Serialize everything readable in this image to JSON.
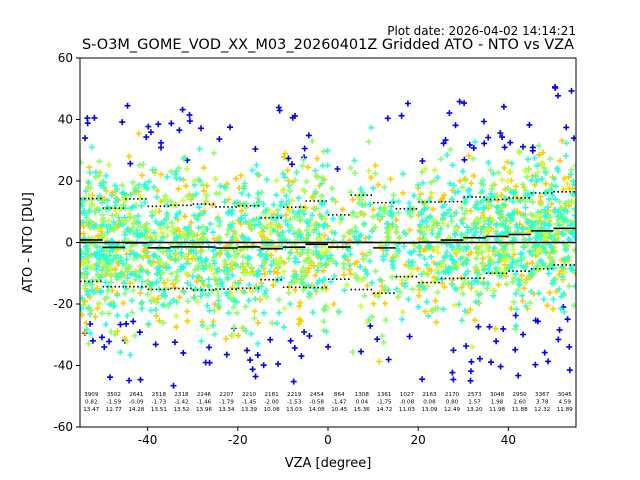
{
  "chart_data": {
    "type": "scatter",
    "plot_date": "Plot date: 2026-04-02 14:14:21",
    "title": "S-O3M_GOME_VOD_XX_M03_20260401Z Gridded ATO - NTO vs VZA",
    "xlabel": "VZA [degree]",
    "ylabel": "ATO - NTO [DU]",
    "xlim": [
      -55,
      55
    ],
    "ylim": [
      -60,
      60
    ],
    "xticks": [
      "-40",
      "-20",
      "0",
      "20",
      "40"
    ],
    "xtick_values": [
      -40,
      -20,
      0,
      20,
      40
    ],
    "yticks": [
      "60",
      "40",
      "20",
      "0",
      "-20",
      "-40",
      "-60"
    ],
    "ytick_values": [
      60,
      40,
      20,
      0,
      -20,
      -40,
      -60
    ],
    "marker": "plus",
    "marker_colors": [
      "#0000ee",
      "#ffcc00",
      "#88ff66",
      "#33ffcc",
      "#22ffee",
      "#ccff33"
    ],
    "bin_edges": [
      -55,
      -50,
      -45,
      -40,
      -35,
      -30,
      -25,
      -20,
      -15,
      -10,
      -5,
      0,
      5,
      10,
      15,
      20,
      25,
      30,
      35,
      40,
      45,
      50,
      55
    ],
    "bins": [
      {
        "x": -52.5,
        "count": "3909",
        "mean": "0.82",
        "std": "13.47"
      },
      {
        "x": -47.5,
        "count": "3502",
        "mean": "-1.59",
        "std": "12.77"
      },
      {
        "x": -42.5,
        "count": "2641",
        "mean": "-0.09",
        "std": "14.28"
      },
      {
        "x": -37.5,
        "count": "2518",
        "mean": "-1.73",
        "std": "13.51"
      },
      {
        "x": -32.5,
        "count": "2318",
        "mean": "-1.42",
        "std": "13.52"
      },
      {
        "x": -27.5,
        "count": "2246",
        "mean": "-1.46",
        "std": "13.96"
      },
      {
        "x": -22.5,
        "count": "2207",
        "mean": "-1.79",
        "std": "13.34"
      },
      {
        "x": -17.5,
        "count": "2210",
        "mean": "-1.45",
        "std": "13.39"
      },
      {
        "x": -12.5,
        "count": "2181",
        "mean": "-2.00",
        "std": "10.08"
      },
      {
        "x": -7.5,
        "count": "2219",
        "mean": "-1.53",
        "std": "13.03"
      },
      {
        "x": -2.5,
        "count": "2454",
        "mean": "-0.58",
        "std": "14.08"
      },
      {
        "x": 2.5,
        "count": "864",
        "mean": "-1.47",
        "std": "10.45"
      },
      {
        "x": 7.5,
        "count": "1308",
        "mean": "0.04",
        "std": "15.36"
      },
      {
        "x": 12.5,
        "count": "1361",
        "mean": "-1.75",
        "std": "14.72"
      },
      {
        "x": 17.5,
        "count": "1027",
        "mean": "-0.08",
        "std": "11.03"
      },
      {
        "x": 22.5,
        "count": "2163",
        "mean": "0.08",
        "std": "13.09"
      },
      {
        "x": 27.5,
        "count": "2170",
        "mean": "0.80",
        "std": "12.49"
      },
      {
        "x": 32.5,
        "count": "2573",
        "mean": "1.57",
        "std": "13.20"
      },
      {
        "x": 37.5,
        "count": "3048",
        "mean": "1.98",
        "std": "11.98"
      },
      {
        "x": 42.5,
        "count": "2950",
        "mean": "2.60",
        "std": "11.88"
      },
      {
        "x": 47.5,
        "count": "3367",
        "mean": "3.78",
        "std": "12.32"
      },
      {
        "x": 52.5,
        "count": "3045",
        "mean": "4.59",
        "std": "11.89"
      }
    ]
  }
}
